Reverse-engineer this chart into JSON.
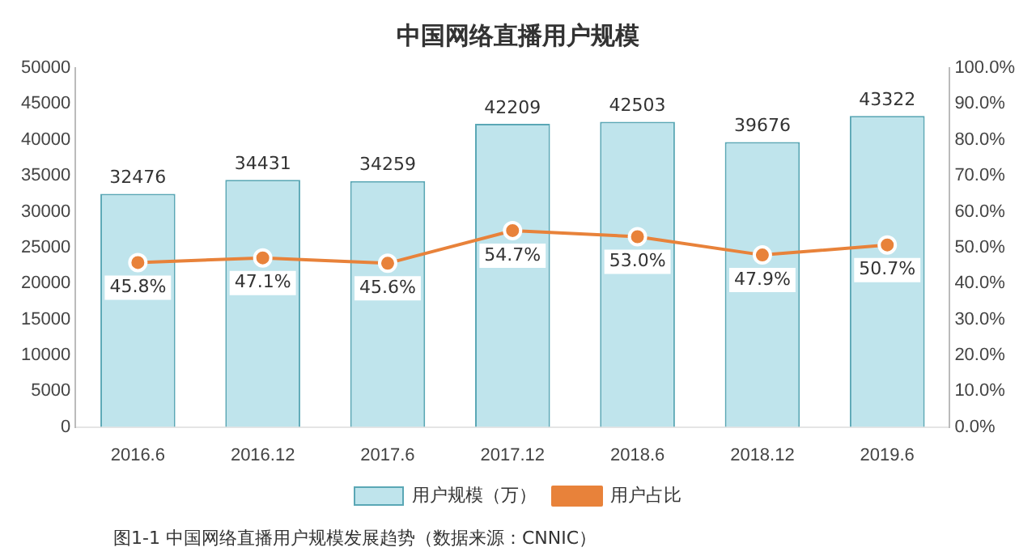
{
  "chart_data": {
    "type": "bar",
    "title": "中国网络直播用户规模",
    "categories": [
      "2016.6",
      "2016.12",
      "2017.6",
      "2017.12",
      "2018.6",
      "2018.12",
      "2019.6"
    ],
    "series": [
      {
        "name": "用户规模（万）",
        "color": "#bfe4ec",
        "values": [
          32476,
          34431,
          34259,
          42209,
          42503,
          39676,
          43322
        ],
        "value_labels": [
          "32476",
          "34431",
          "34259",
          "42209",
          "42503",
          "39676",
          "43322"
        ]
      },
      {
        "name": "用户占比",
        "type": "line",
        "axis": "y2",
        "color": "#e8823a",
        "values": [
          45.8,
          47.1,
          45.6,
          54.7,
          53.0,
          47.9,
          50.7
        ],
        "value_labels": [
          "45.8%",
          "47.1%",
          "45.6%",
          "54.7%",
          "53.0%",
          "47.9%",
          "50.7%"
        ]
      }
    ],
    "ylim": [
      0,
      50000
    ],
    "yticks": [
      0,
      5000,
      10000,
      15000,
      20000,
      25000,
      30000,
      35000,
      40000,
      45000,
      50000
    ],
    "y2lim": [
      0,
      100
    ],
    "y2ticks": [
      {
        "value": 0,
        "label": "0.0%"
      },
      {
        "value": 10,
        "label": "10.0%"
      },
      {
        "value": 20,
        "label": "20.0%"
      },
      {
        "value": 30,
        "label": "30.0%"
      },
      {
        "value": 40,
        "label": "40.0%"
      },
      {
        "value": 50,
        "label": "50.0%"
      },
      {
        "value": 60,
        "label": "60.0%"
      },
      {
        "value": 70,
        "label": "70.0%"
      },
      {
        "value": 80,
        "label": "80.0%"
      },
      {
        "value": 90,
        "label": "90.0%"
      },
      {
        "value": 100,
        "label": "100.0%"
      }
    ],
    "grid": false,
    "legend": "bottom",
    "marker": "circle",
    "line_style": "solid",
    "annotations": [
      "图1-1 中国网络直播用户规模发展趋势（数据来源：CNNIC）"
    ]
  }
}
